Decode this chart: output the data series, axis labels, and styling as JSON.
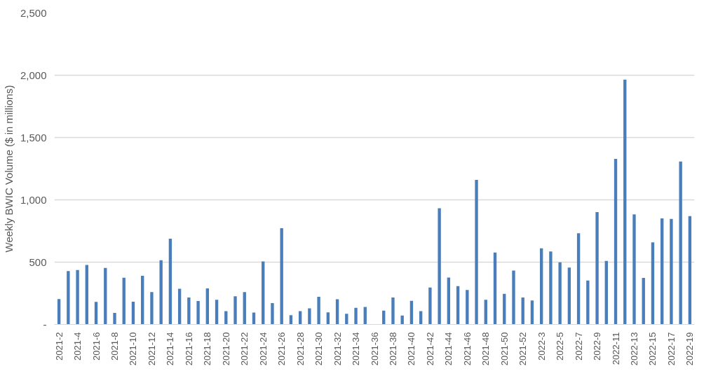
{
  "chart_data": {
    "type": "bar",
    "ylabel": "Weekly BWIC Volume ($ in millions)",
    "categories": [
      "2021-2",
      null,
      "2021-4",
      null,
      "2021-6",
      null,
      "2021-8",
      null,
      "2021-10",
      null,
      "2021-12",
      null,
      "2021-14",
      null,
      "2021-16",
      null,
      "2021-18",
      null,
      "2021-20",
      null,
      "2021-22",
      null,
      "2021-24",
      null,
      "2021-26",
      null,
      "2021-28",
      null,
      "2021-30",
      null,
      "2021-32",
      null,
      "2021-34",
      null,
      "2021-36",
      null,
      "2021-38",
      null,
      "2021-40",
      null,
      "2021-42",
      null,
      "2021-44",
      null,
      "2021-46",
      null,
      "2021-48",
      null,
      "2021-50",
      null,
      "2021-52",
      null,
      "2022-3",
      null,
      "2022-5",
      null,
      "2022-7",
      null,
      "2022-9",
      null,
      "2022-11",
      null,
      "2022-13",
      null,
      "2022-15",
      null,
      "2022-17",
      null,
      "2022-19"
    ],
    "values": [
      204,
      429,
      437,
      478,
      181,
      454,
      93,
      375,
      183,
      391,
      260,
      516,
      688,
      286,
      216,
      188,
      290,
      198,
      107,
      226,
      260,
      95,
      506,
      171,
      772,
      75,
      107,
      129,
      222,
      97,
      202,
      85,
      133,
      141,
      null,
      111,
      216,
      71,
      190,
      107,
      296,
      933,
      377,
      308,
      276,
      1160,
      198,
      577,
      246,
      433,
      216,
      192,
      611,
      585,
      498,
      456,
      732,
      353,
      901,
      510,
      1329,
      1965,
      883,
      373,
      659,
      851,
      847,
      1308,
      869
    ],
    "color": "#4a7ebb",
    "ylim": [
      0,
      2500
    ],
    "yticks": [
      {
        "value": 0,
        "label": "-"
      },
      {
        "value": 500,
        "label": "500"
      },
      {
        "value": 1000,
        "label": "1,000"
      },
      {
        "value": 1500,
        "label": "1,500"
      },
      {
        "value": 2000,
        "label": "2,000"
      },
      {
        "value": 2500,
        "label": "2,500"
      }
    ],
    "grid": "y"
  }
}
